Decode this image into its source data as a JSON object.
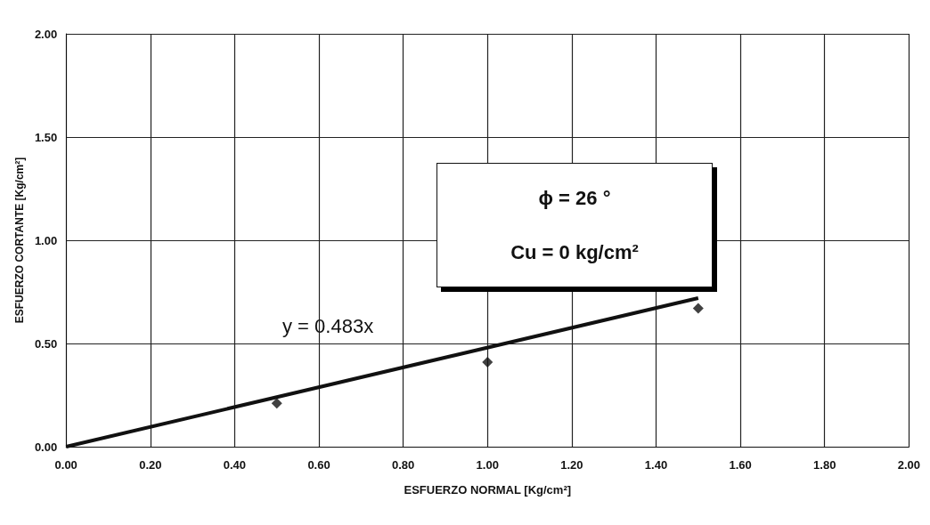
{
  "chart_data": {
    "type": "scatter",
    "xlabel": "ESFUERZO NORMAL [Kg/cm²]",
    "ylabel": "ESFUERZO CORTANTE [Kg/cm²]",
    "series": [
      {
        "color": "#111111",
        "marker": "diamond",
        "x": [
          0.5,
          1.0,
          1.5
        ],
        "values": [
          0.21,
          0.41,
          0.67
        ]
      },
      {
        "type": "line",
        "color": "#111111",
        "marker": "none",
        "x": [
          0,
          1.5
        ],
        "values": [
          0,
          0.72
        ]
      }
    ],
    "xlim": [
      0,
      2
    ],
    "xticks": [
      {
        "value": 0,
        "label": "0.00"
      },
      {
        "value": 0.2,
        "label": "0.20"
      },
      {
        "value": 0.4,
        "label": "0.40"
      },
      {
        "value": 0.6,
        "label": "0.60"
      },
      {
        "value": 0.8,
        "label": "0.80"
      },
      {
        "value": 1,
        "label": "1.00"
      },
      {
        "value": 1.2,
        "label": "1.20"
      },
      {
        "value": 1.4,
        "label": "1.40"
      },
      {
        "value": 1.6,
        "label": "1.60"
      },
      {
        "value": 1.8,
        "label": "1.80"
      },
      {
        "value": 2,
        "label": "2.00"
      }
    ],
    "ylim": [
      0,
      2
    ],
    "yticks": [
      {
        "value": 0,
        "label": "0.00"
      },
      {
        "value": 0.5,
        "label": "0.50"
      },
      {
        "value": 1,
        "label": "1.00"
      },
      {
        "value": 1.5,
        "label": "1.50"
      },
      {
        "value": 2,
        "label": "2.00"
      }
    ],
    "grid": true,
    "line_style": "solid",
    "annotations": [
      "y = 0.483x",
      "ϕ =  26 °",
      "Cu =  0 kg/cm²"
    ]
  }
}
